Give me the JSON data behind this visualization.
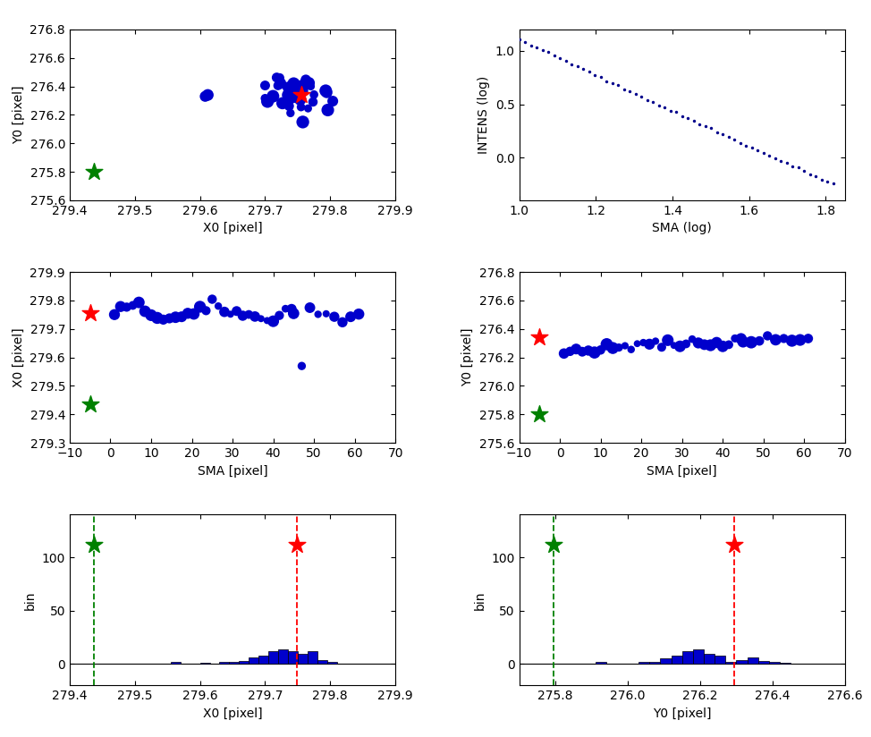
{
  "background_color": "#ffffff",
  "plot1": {
    "xlabel": "X0 [pixel]",
    "ylabel": "Y0 [pixel]",
    "xlim": [
      279.4,
      279.9
    ],
    "ylim": [
      275.6,
      276.8
    ],
    "red_x": 279.755,
    "red_y": 276.34,
    "green_x": 279.437,
    "green_y": 275.8
  },
  "plot2": {
    "xlabel": "SMA (log)",
    "ylabel": "INTENS (log)",
    "xlim": [
      1.0,
      1.85
    ],
    "ylim": [
      -0.4,
      1.2
    ]
  },
  "plot3": {
    "xlabel": "SMA [pixel]",
    "ylabel": "X0 [pixel]",
    "xlim": [
      -10,
      70
    ],
    "ylim": [
      279.3,
      279.9
    ],
    "red_x": -5,
    "red_y": 279.755,
    "green_x": -5,
    "green_y": 279.437
  },
  "plot4": {
    "xlabel": "SMA [pixel]",
    "ylabel": "Y0 [pixel]",
    "xlim": [
      -10,
      70
    ],
    "ylim": [
      275.6,
      276.8
    ],
    "red_x": -5,
    "red_y": 276.34,
    "green_x": -5,
    "green_y": 275.8
  },
  "plot5": {
    "xlabel": "X0 [pixel]",
    "ylabel": "bin",
    "xlim": [
      279.4,
      279.9
    ],
    "ylim": [
      -20,
      140
    ],
    "green_vline": 279.437,
    "red_vline": 279.749,
    "green_star_y": 112,
    "red_star_y": 112,
    "bar_edges": [
      279.555,
      279.57,
      279.585,
      279.6,
      279.615,
      279.63,
      279.645,
      279.66,
      279.675,
      279.69,
      279.705,
      279.72,
      279.735,
      279.75,
      279.765,
      279.78,
      279.795,
      279.81
    ],
    "bar_counts": [
      2,
      0,
      0,
      1,
      0,
      2,
      2,
      3,
      6,
      8,
      12,
      14,
      12,
      10,
      12,
      4,
      2
    ]
  },
  "plot6": {
    "xlabel": "Y0 [pixel]",
    "ylabel": "bin",
    "xlim": [
      275.7,
      276.6
    ],
    "ylim": [
      -20,
      140
    ],
    "green_vline": 275.795,
    "red_vline": 276.295,
    "green_star_y": 112,
    "red_star_y": 112,
    "bar_edges": [
      275.88,
      275.91,
      275.94,
      275.97,
      276.0,
      276.03,
      276.06,
      276.09,
      276.12,
      276.15,
      276.18,
      276.21,
      276.24,
      276.27,
      276.3,
      276.33,
      276.36,
      276.39,
      276.42,
      276.45
    ],
    "bar_counts": [
      0,
      2,
      0,
      0,
      0,
      2,
      2,
      5,
      8,
      12,
      14,
      10,
      8,
      2,
      4,
      6,
      3,
      2,
      1
    ]
  },
  "blue_color": "#0000cc",
  "dark_blue_color": "#00008b",
  "red_color": "#ff0000",
  "green_color": "#008000",
  "star_size": 200,
  "fontsize": 10
}
